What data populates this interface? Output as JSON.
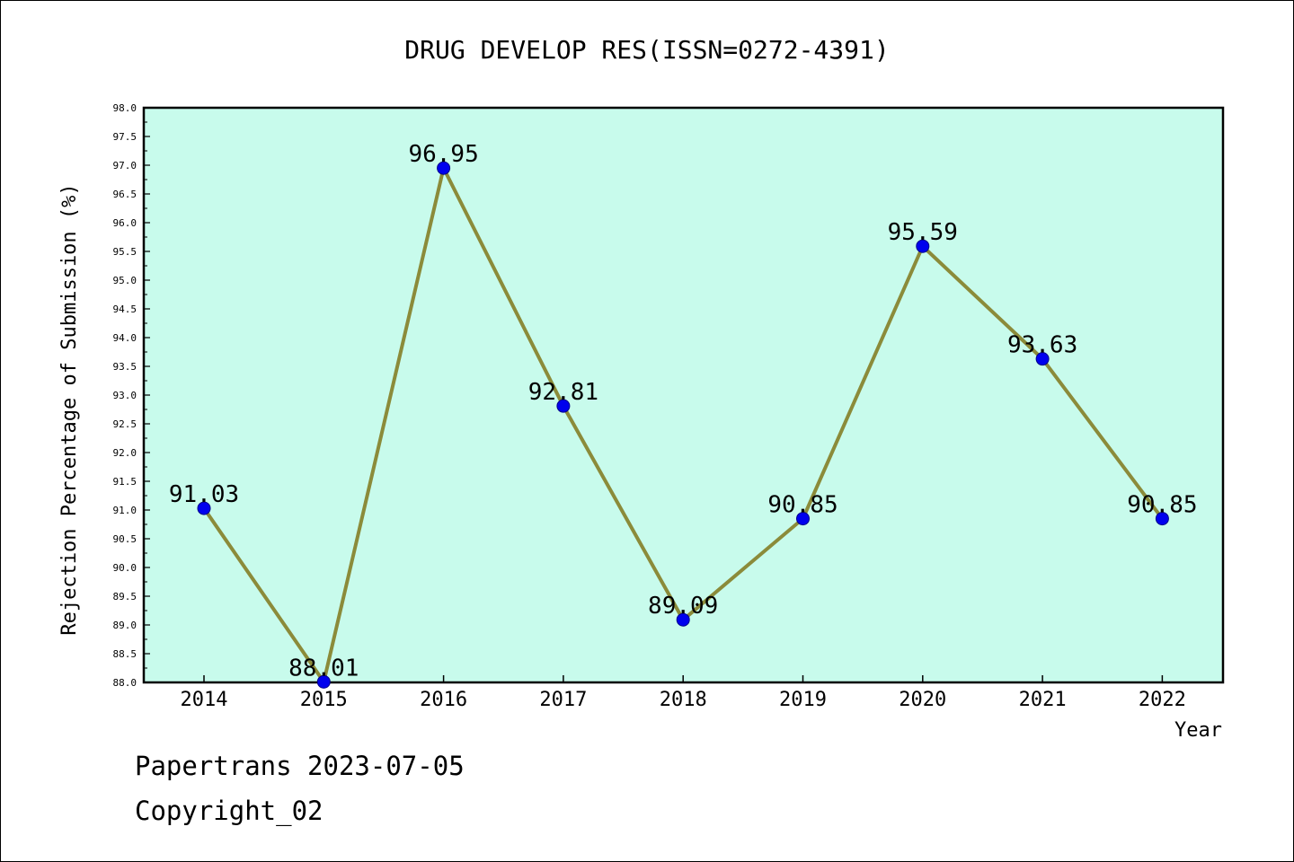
{
  "chart_data": {
    "type": "line",
    "title": "DRUG DEVELOP RES(ISSN=0272-4391)",
    "xlabel": "Year",
    "ylabel": "Rejection Percentage of Submission (%)",
    "categories": [
      "2014",
      "2015",
      "2016",
      "2017",
      "2018",
      "2019",
      "2020",
      "2021",
      "2022"
    ],
    "values": [
      91.03,
      88.01,
      96.95,
      92.81,
      89.09,
      90.85,
      95.59,
      93.63,
      90.85
    ],
    "data_labels": [
      "91.03",
      "88.01",
      "96.95",
      "92.81",
      "89.09",
      "90.85",
      "95.59",
      "93.63",
      "90.85"
    ],
    "ylim": [
      88.0,
      98.0
    ],
    "yticks": [
      "88.0",
      "88.5",
      "89.0",
      "89.5",
      "90.0",
      "90.5",
      "91.0",
      "91.5",
      "92.0",
      "92.5",
      "93.0",
      "93.5",
      "94.0",
      "94.5",
      "95.0",
      "95.5",
      "96.0",
      "96.5",
      "97.0",
      "97.5",
      "98.0"
    ],
    "grid": false,
    "colors": {
      "plot_background": "#c8fbec",
      "line": "#8b8b3a",
      "marker": "#0000ee"
    }
  },
  "footer": {
    "line1": "Papertrans 2023-07-05",
    "line2": "Copyright_02"
  }
}
